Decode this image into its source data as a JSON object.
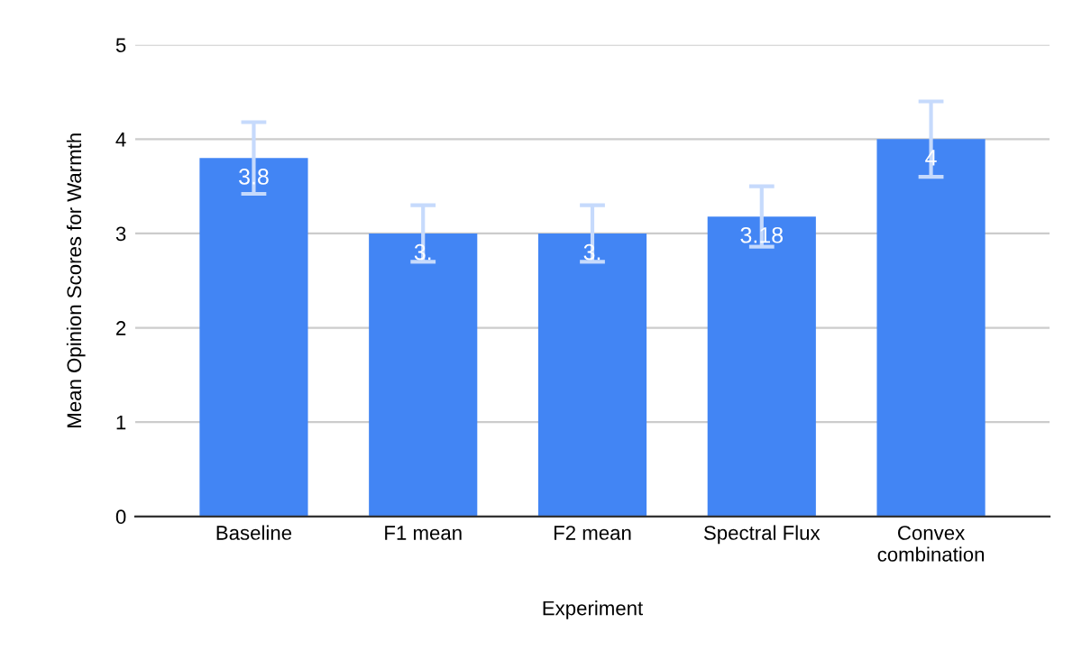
{
  "chart_data": {
    "type": "bar",
    "xlabel": "Experiment",
    "ylabel": "Mean Opinion Scores for Warmth",
    "categories": [
      "Baseline",
      "F1 mean",
      "F2 mean",
      "Spectral Flux",
      "Convex\ncombination"
    ],
    "series": [
      {
        "color": "#4285f4",
        "values": [
          3.8,
          3,
          3,
          3.18,
          4
        ],
        "errors": [
          0.38,
          0.3,
          0.3,
          0.32,
          0.4
        ],
        "value_labels": [
          "3.8",
          "3.",
          "3.",
          "3.18",
          "4"
        ]
      }
    ],
    "ylim": [
      0,
      5
    ],
    "yticks": [
      0,
      1,
      2,
      3,
      4,
      5
    ],
    "grid": "y",
    "legend": false
  }
}
